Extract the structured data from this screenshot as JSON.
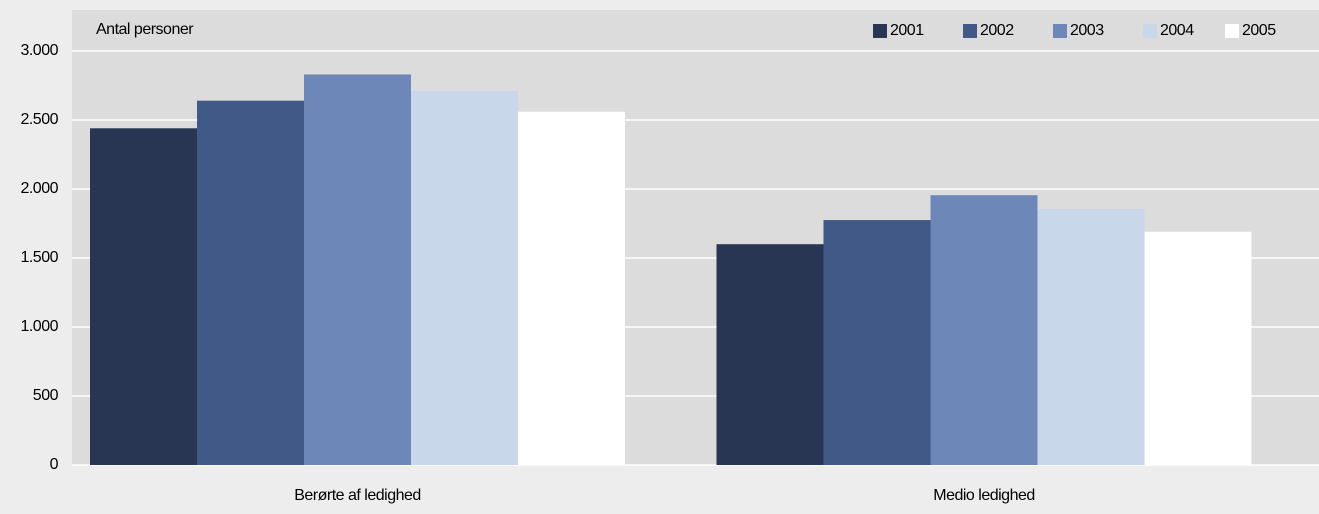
{
  "chart_data": {
    "type": "bar",
    "y_label": "Antal personer",
    "categories": [
      "Berørte af ledighed",
      "Medio ledighed"
    ],
    "series": [
      {
        "name": "2001",
        "color": "#283654",
        "values": [
          2440,
          1600
        ]
      },
      {
        "name": "2002",
        "color": "#415987",
        "values": [
          2640,
          1775
        ]
      },
      {
        "name": "2003",
        "color": "#6d88b8",
        "values": [
          2830,
          1955
        ]
      },
      {
        "name": "2004",
        "color": "#c9d7ea",
        "values": [
          2710,
          1855
        ]
      },
      {
        "name": "2005",
        "color": "#ffffff",
        "values": [
          2560,
          1690
        ]
      }
    ],
    "ylim": [
      0,
      3000
    ],
    "yticks": [
      0,
      500,
      {
        "value": 1000,
        "label": "1.000"
      },
      {
        "value": 1500,
        "label": "1.500"
      },
      {
        "value": 2000,
        "label": "2.000"
      },
      {
        "value": 2500,
        "label": "2.500"
      },
      {
        "value": 3000,
        "label": "3.000"
      }
    ],
    "grid": true,
    "legend": "top-right"
  }
}
